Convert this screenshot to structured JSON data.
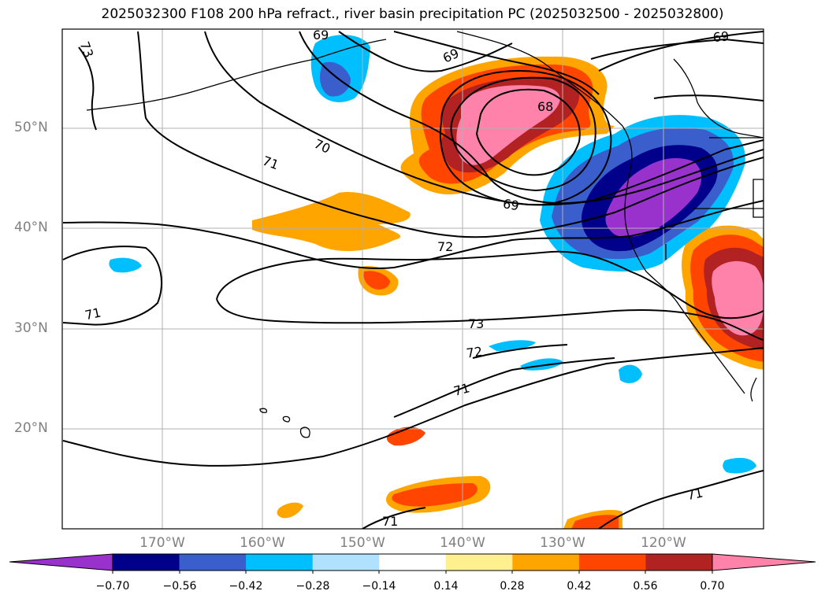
{
  "title": "2025032300 F108 200 hPa refract., river basin precipitation PC (2025032500 - 2025032800)",
  "lat_labels": [
    "50°N",
    "40°N",
    "30°N",
    "20°N"
  ],
  "lon_labels": [
    "170°W",
    "160°W",
    "150°W",
    "140°W",
    "130°W",
    "120°W"
  ],
  "contour_labels": [
    "73",
    "69",
    "69",
    "70",
    "71",
    "69",
    "68",
    "72",
    "71",
    "73",
    "72",
    "71",
    "71",
    "71",
    "69"
  ],
  "colorbar": {
    "ticks": [
      "−0.70",
      "−0.56",
      "−0.42",
      "−0.28",
      "−0.14",
      "0.14",
      "0.28",
      "0.42",
      "0.56",
      "0.70"
    ],
    "colors": [
      "#9932cc",
      "#00008b",
      "#3a5fcd",
      "#00bfff",
      "#b0e2ff",
      "#ffffff",
      "#fff08f",
      "#ffa500",
      "#ff4500",
      "#b22222",
      "#ff82ab"
    ]
  }
}
